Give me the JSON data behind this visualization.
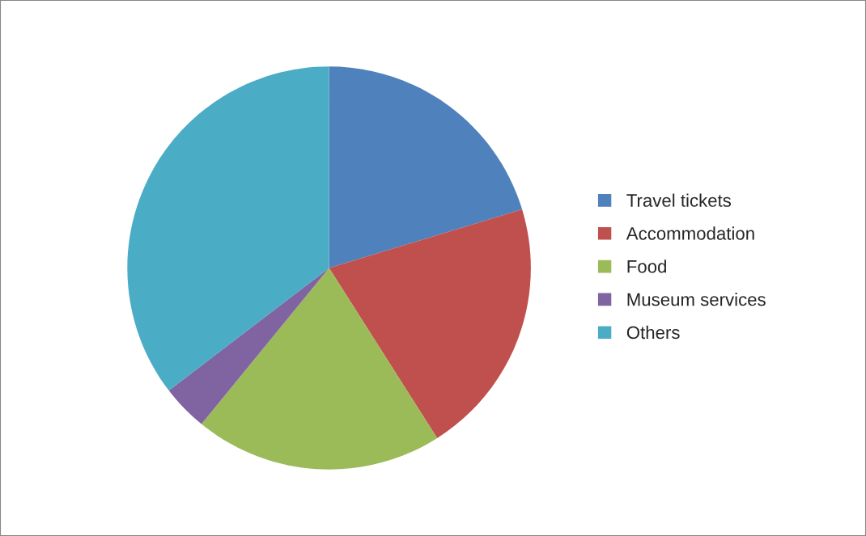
{
  "chart_data": {
    "type": "pie",
    "categories": [
      "Travel tickets",
      "Accommodation",
      "Food",
      "Museum services",
      "Others"
    ],
    "values": [
      20.3,
      20.7,
      19.9,
      3.7,
      35.4
    ],
    "colors": [
      "#4f81bd",
      "#c0504d",
      "#9bbb59",
      "#8064a2",
      "#4bacc6"
    ],
    "legend": "right"
  }
}
